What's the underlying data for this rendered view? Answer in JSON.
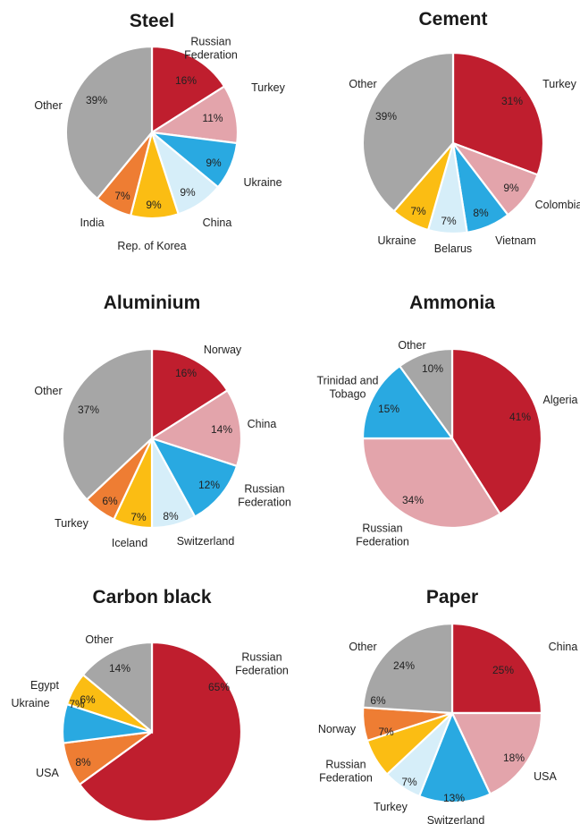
{
  "colors": {
    "dark-red": "#bf1e2e",
    "pink": "#e3a4ab",
    "blue": "#29a9e1",
    "light-blue": "#d6eef9",
    "yellow": "#fbbd13",
    "orange": "#ee7d33",
    "gray": "#a6a6a6"
  },
  "chart_data": [
    {
      "type": "pie",
      "title": "Steel",
      "slices": [
        {
          "label": "Russian\nFederation",
          "value": 16,
          "display": "16%",
          "color": "dark-red"
        },
        {
          "label": "Turkey",
          "value": 11,
          "display": "11%",
          "color": "pink"
        },
        {
          "label": "Ukraine",
          "value": 9,
          "display": "9%",
          "color": "blue"
        },
        {
          "label": "China",
          "value": 9,
          "display": "9%",
          "color": "light-blue"
        },
        {
          "label": "Rep. of Korea",
          "value": 9,
          "display": "9%",
          "color": "yellow"
        },
        {
          "label": "India",
          "value": 7,
          "display": "7%",
          "color": "orange"
        },
        {
          "label": "Other",
          "value": 39,
          "display": "39%",
          "color": "gray"
        }
      ]
    },
    {
      "type": "pie",
      "title": "Cement",
      "slices": [
        {
          "label": "Turkey",
          "value": 31,
          "display": "31%",
          "color": "dark-red"
        },
        {
          "label": "Colombia",
          "value": 9,
          "display": "9%",
          "color": "pink"
        },
        {
          "label": "Vietnam",
          "value": 8,
          "display": "8%",
          "color": "blue"
        },
        {
          "label": "Belarus",
          "value": 7,
          "display": "7%",
          "color": "light-blue"
        },
        {
          "label": "Ukraine",
          "value": 7,
          "display": "7%",
          "color": "yellow"
        },
        {
          "label": "Other",
          "value": 39,
          "display": "39%",
          "color": "gray"
        }
      ]
    },
    {
      "type": "pie",
      "title": "Aluminium",
      "slices": [
        {
          "label": "Norway",
          "value": 16,
          "display": "16%",
          "color": "dark-red"
        },
        {
          "label": "China",
          "value": 14,
          "display": "14%",
          "color": "pink"
        },
        {
          "label": "Russian\nFederation",
          "value": 12,
          "display": "12%",
          "color": "blue"
        },
        {
          "label": "Switzerland",
          "value": 8,
          "display": "8%",
          "color": "light-blue"
        },
        {
          "label": "Iceland",
          "value": 7,
          "display": "7%",
          "color": "yellow"
        },
        {
          "label": "Turkey",
          "value": 6,
          "display": "6%",
          "color": "orange"
        },
        {
          "label": "Other",
          "value": 37,
          "display": "37%",
          "color": "gray"
        }
      ]
    },
    {
      "type": "pie",
      "title": "Ammonia",
      "slices": [
        {
          "label": "Algeria",
          "value": 41,
          "display": "41%",
          "color": "dark-red"
        },
        {
          "label": "Russian\nFederation",
          "value": 34,
          "display": "34%",
          "color": "pink"
        },
        {
          "label": "Trinidad and\nTobago",
          "value": 15,
          "display": "15%",
          "color": "blue"
        },
        {
          "label": "Other",
          "value": 10,
          "display": "10%",
          "color": "gray"
        }
      ]
    },
    {
      "type": "pie",
      "title": "Carbon black",
      "slices": [
        {
          "label": "Russian\nFederation",
          "value": 65,
          "display": "65%",
          "color": "dark-red"
        },
        {
          "label": "USA",
          "value": 8,
          "display": "8%",
          "color": "orange"
        },
        {
          "label": "Ukraine",
          "value": 7,
          "display": "7%",
          "color": "blue"
        },
        {
          "label": "Egypt",
          "value": 6,
          "display": "6%",
          "color": "yellow"
        },
        {
          "label": "Other",
          "value": 14,
          "display": "14%",
          "color": "gray"
        }
      ]
    },
    {
      "type": "pie",
      "title": "Paper",
      "slices": [
        {
          "label": "China",
          "value": 25,
          "display": "25%",
          "color": "dark-red"
        },
        {
          "label": "USA",
          "value": 18,
          "display": "18%",
          "color": "pink"
        },
        {
          "label": "Switzerland",
          "value": 13,
          "display": "13%",
          "color": "blue"
        },
        {
          "label": "Turkey",
          "value": 7,
          "display": "7%",
          "color": "light-blue"
        },
        {
          "label": "Russian\nFederation",
          "value": 7,
          "display": "7%",
          "color": "yellow"
        },
        {
          "label": "Norway",
          "value": 6,
          "display": "6%",
          "color": "orange"
        },
        {
          "label": "Other",
          "value": 24,
          "display": "24%",
          "color": "gray"
        }
      ]
    }
  ]
}
